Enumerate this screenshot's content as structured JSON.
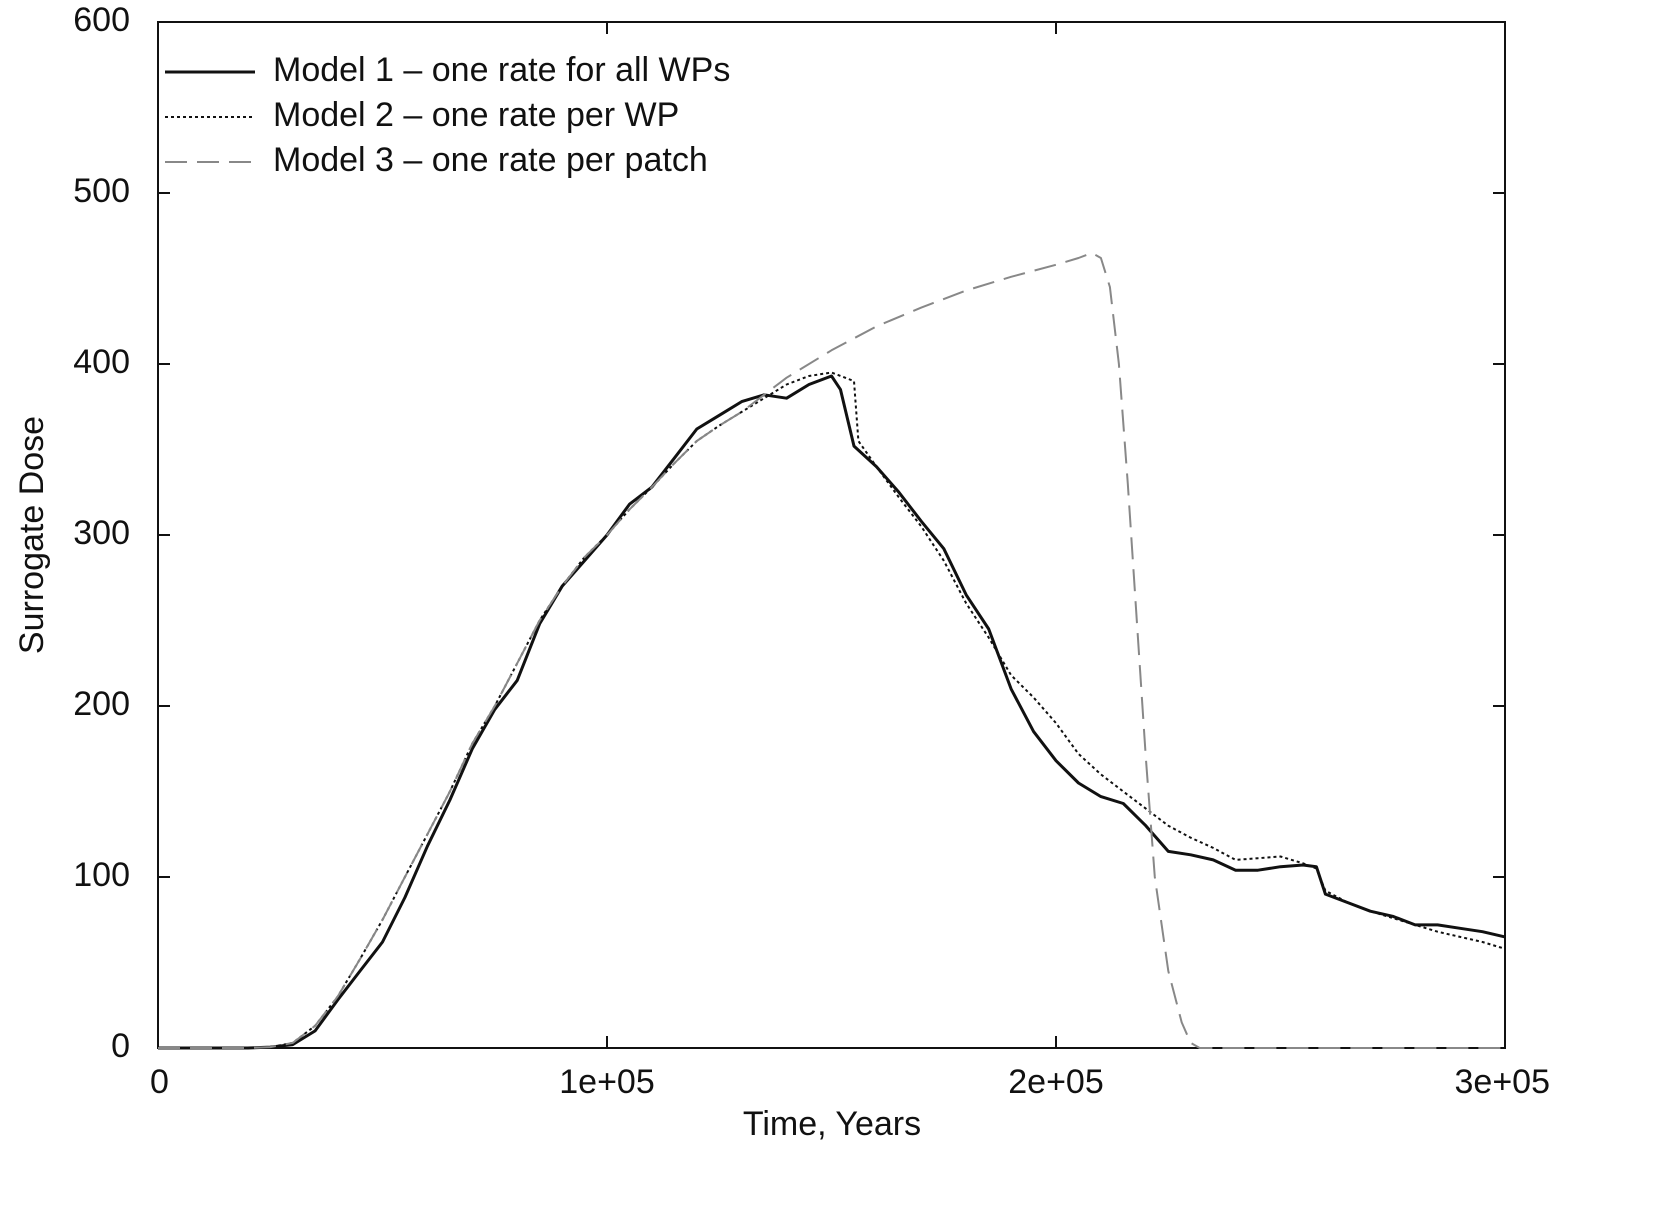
{
  "chart_data": {
    "type": "line",
    "xlabel": "Time, Years",
    "ylabel": "Surrogate Dose",
    "xlim": [
      0,
      300000
    ],
    "ylim": [
      0,
      600
    ],
    "xticks": [
      0,
      {
        "value": 100000,
        "label": "1e+05"
      },
      {
        "value": 200000,
        "label": "2e+05"
      },
      {
        "value": 300000,
        "label": "3e+05"
      }
    ],
    "yticks": [
      0,
      100,
      200,
      300,
      400,
      500,
      600
    ],
    "legend": "upper-left",
    "series": [
      {
        "name": "Model 1 – one rate for all WPs",
        "color": "#111111",
        "style": "solid",
        "x": [
          0,
          10000,
          20000,
          25000,
          30000,
          35000,
          40000,
          45000,
          50000,
          55000,
          60000,
          65000,
          70000,
          75000,
          80000,
          85000,
          90000,
          95000,
          100000,
          105000,
          110000,
          115000,
          120000,
          125000,
          130000,
          135000,
          140000,
          145000,
          150000,
          152000,
          155000,
          160000,
          165000,
          170000,
          175000,
          180000,
          185000,
          190000,
          195000,
          200000,
          205000,
          210000,
          215000,
          220000,
          225000,
          230000,
          235000,
          240000,
          245000,
          250000,
          255000,
          258000,
          260000,
          265000,
          270000,
          275000,
          280000,
          285000,
          290000,
          295000,
          300000
        ],
        "values": [
          0,
          0,
          0,
          0.5,
          2,
          10,
          28,
          45,
          62,
          88,
          118,
          145,
          175,
          198,
          215,
          248,
          270,
          285,
          300,
          318,
          328,
          345,
          362,
          370,
          378,
          382,
          380,
          388,
          393,
          385,
          352,
          340,
          325,
          308,
          292,
          265,
          245,
          210,
          185,
          168,
          155,
          147,
          143,
          130,
          115,
          113,
          110,
          104,
          104,
          106,
          107,
          106,
          90,
          85,
          80,
          77,
          72,
          72,
          70,
          68,
          65
        ]
      },
      {
        "name": "Model 2 – one rate per WP",
        "color": "#111111",
        "style": "dotted",
        "x": [
          0,
          10000,
          20000,
          25000,
          30000,
          35000,
          40000,
          45000,
          50000,
          55000,
          60000,
          65000,
          70000,
          75000,
          80000,
          85000,
          90000,
          95000,
          100000,
          105000,
          110000,
          115000,
          120000,
          125000,
          130000,
          135000,
          140000,
          145000,
          150000,
          155000,
          156000,
          160000,
          165000,
          170000,
          175000,
          180000,
          185000,
          190000,
          195000,
          200000,
          205000,
          210000,
          215000,
          220000,
          225000,
          230000,
          235000,
          240000,
          245000,
          250000,
          255000,
          258000,
          260000,
          265000,
          270000,
          275000,
          280000,
          285000,
          290000,
          295000,
          300000
        ],
        "values": [
          0,
          0,
          0,
          0.5,
          3,
          13,
          30,
          52,
          75,
          100,
          125,
          150,
          178,
          200,
          225,
          250,
          270,
          287,
          300,
          315,
          328,
          342,
          355,
          364,
          372,
          380,
          388,
          393,
          395,
          390,
          355,
          340,
          322,
          305,
          285,
          260,
          240,
          218,
          205,
          190,
          172,
          160,
          150,
          140,
          130,
          123,
          117,
          110,
          111,
          112,
          108,
          105,
          92,
          85,
          80,
          76,
          72,
          68,
          65,
          62,
          58
        ]
      },
      {
        "name": "Model 3 – one rate per patch",
        "color": "#888888",
        "style": "dashed",
        "x": [
          0,
          10000,
          20000,
          25000,
          30000,
          35000,
          40000,
          45000,
          50000,
          55000,
          60000,
          65000,
          70000,
          75000,
          80000,
          85000,
          90000,
          95000,
          100000,
          105000,
          110000,
          115000,
          120000,
          125000,
          130000,
          135000,
          140000,
          150000,
          160000,
          170000,
          180000,
          190000,
          200000,
          205000,
          208000,
          210000,
          212000,
          214000,
          216000,
          218000,
          220000,
          222000,
          225000,
          228000,
          230000,
          232000,
          260000,
          300000
        ],
        "values": [
          0,
          0,
          0,
          0.5,
          3,
          13,
          30,
          52,
          75,
          100,
          125,
          150,
          178,
          200,
          225,
          250,
          270,
          287,
          300,
          315,
          328,
          342,
          355,
          364,
          372,
          382,
          392,
          408,
          422,
          433,
          443,
          451,
          458,
          462,
          465,
          462,
          445,
          400,
          330,
          250,
          170,
          100,
          45,
          15,
          3,
          0,
          0,
          0
        ]
      }
    ]
  }
}
